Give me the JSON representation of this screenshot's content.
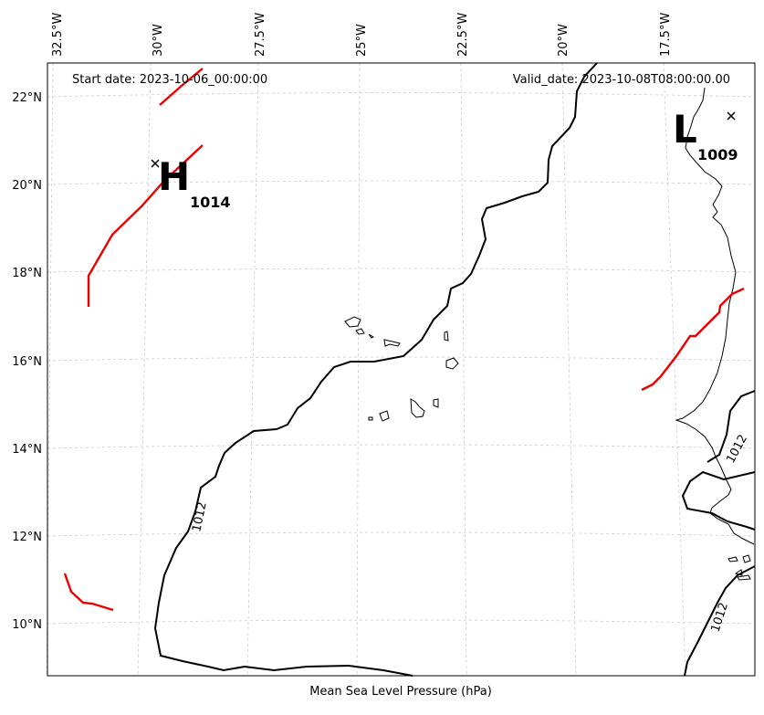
{
  "map": {
    "start_date": "Start date: 2023-10-06_00:00:00",
    "valid_date": "Valid_date: 2023-10-08T08:00:00.00",
    "caption": "Mean Sea Level Pressure (hPa)",
    "lon_ticks": [
      "32.5°W",
      "30°W",
      "27.5°W",
      "25°W",
      "22.5°W",
      "20°W",
      "17.5°W"
    ],
    "lat_ticks": [
      "22°N",
      "20°N",
      "18°N",
      "16°N",
      "14°N",
      "12°N",
      "10°N"
    ],
    "pressure_centers": [
      {
        "type": "high",
        "letter": "H",
        "value": "1014",
        "lon": -29.6,
        "lat": 20.5
      },
      {
        "type": "low",
        "letter": "L",
        "value": "1009",
        "lon": -16.5,
        "lat": 21.6
      }
    ],
    "contour_labels": [
      "1012",
      "1012",
      "1012"
    ],
    "colors": {
      "isobar": "#000000",
      "front_line": "#ee0000",
      "coastline": "#000000",
      "grid": "#cccccc"
    }
  }
}
